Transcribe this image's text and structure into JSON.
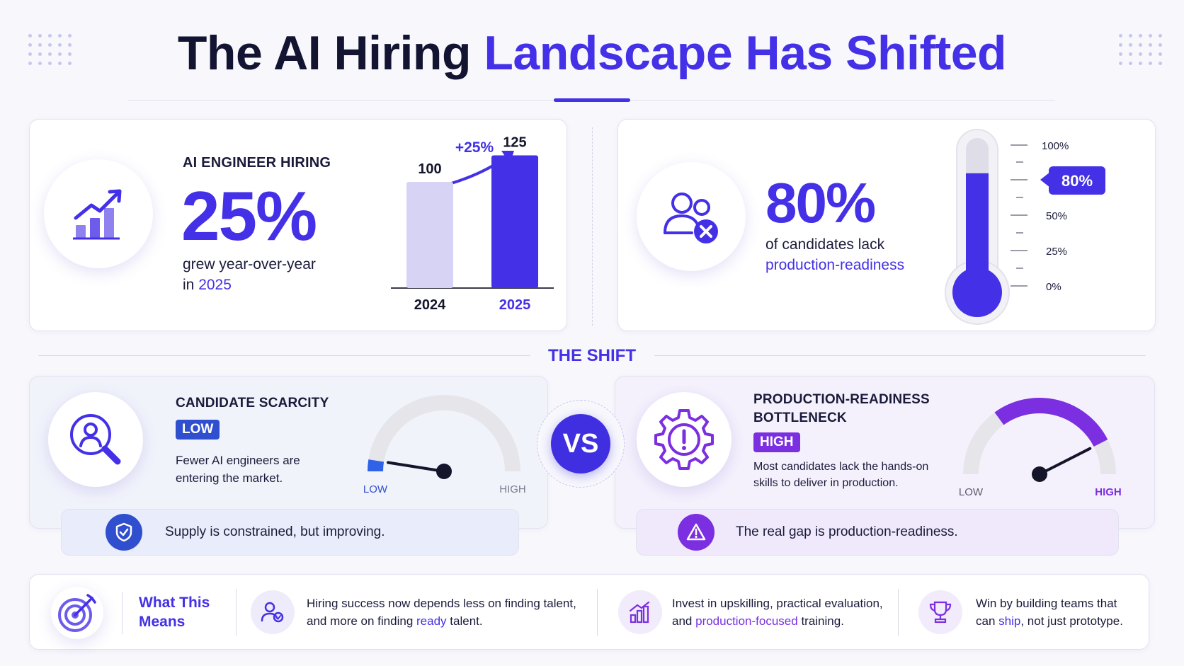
{
  "header": {
    "title_part1": "The AI Hiring",
    "title_part2": "Landscape Has Shifted"
  },
  "hiring_card": {
    "label": "AI ENGINEER HIRING",
    "big_value": "25%",
    "desc_line1": "grew year-over-year",
    "desc_line2_prefix": "in",
    "desc_line2_year": "2025",
    "icon": "growth-chart-icon",
    "growth_label": "+25%"
  },
  "readiness_card": {
    "big_value": "80%",
    "desc_line1": "of candidates lack",
    "desc_line2": "production-readiness",
    "icon": "user-cross-icon",
    "gauge_value": 80,
    "gauge_badge": "80%",
    "gauge_ticks": [
      "100%",
      "50%",
      "25%",
      "0%"
    ]
  },
  "shift": {
    "title": "THE SHIFT",
    "vs": "VS"
  },
  "scarcity": {
    "title": "CANDIDATE SCARCITY",
    "badge": "LOW",
    "desc_line1": "Fewer AI engineers are",
    "desc_line2": "entering the market.",
    "gauge_low": "LOW",
    "gauge_high": "HIGH",
    "level": 0.05,
    "callout": "Supply is constrained, but improving.",
    "icon": "search-person-icon",
    "callout_icon": "shield-check-icon"
  },
  "bottleneck": {
    "title_line1": "PRODUCTION-READINESS",
    "title_line2": "BOTTLENECK",
    "badge": "HIGH",
    "desc_line1": "Most candidates lack the hands-on",
    "desc_line2": "skills to deliver in production.",
    "gauge_low": "LOW",
    "gauge_high": "HIGH",
    "level": 0.85,
    "callout": "The real gap is production-readiness.",
    "icon": "gear-alert-icon",
    "callout_icon": "warning-icon"
  },
  "bottom": {
    "heading_line1": "What This",
    "heading_line2": "Means",
    "item1_line1": "Hiring success now depends less on finding talent,",
    "item1_line2_a": "and more on finding",
    "item1_line2_b": "ready",
    "item1_line2_c": "talent.",
    "item2_line1": "Invest in upskilling, practical evaluation,",
    "item2_line2_a": "and",
    "item2_line2_b": "production-focused",
    "item2_line2_c": "training.",
    "item3_line1": "Win by building teams that",
    "item3_line2_a": "can",
    "item3_line2_b": "ship",
    "item3_line2_c": ", not just prototype."
  },
  "chart_data": {
    "type": "bar",
    "categories": [
      "2024",
      "2025"
    ],
    "values": [
      100,
      125
    ],
    "ylim": [
      0,
      140
    ],
    "title": "",
    "xlabel": "",
    "ylabel": "",
    "colors": [
      "#d6d3f5",
      "#4430e6"
    ]
  },
  "colors": {
    "accent": "#4430e6",
    "purple": "#7b2fe0",
    "gauge_track": "#e6e6ea"
  }
}
